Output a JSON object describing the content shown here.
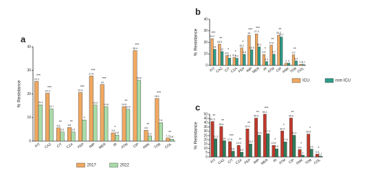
{
  "chart_data": [
    {
      "type": "bar",
      "panel": "a",
      "y_label": "% Resistance",
      "categories": [
        "P/T",
        "CAZ",
        "C/T",
        "CZA",
        "FEP",
        "IMP",
        "MER",
        "IR",
        "ATM",
        "CIP",
        "AMK",
        "TOB",
        "COL"
      ],
      "series": [
        {
          "name": "2017",
          "color": "#f0a860",
          "values": [
            25.3,
            20.3,
            5.6,
            5.8,
            20.6,
            27.6,
            24.0,
            3.5,
            14.6,
            38.4,
            4.6,
            18.1,
            1.3
          ]
        },
        {
          "name": "2022",
          "color": "#a8dca8",
          "values": [
            15.4,
            13.7,
            3.9,
            3.9,
            9.0,
            15.3,
            14.6,
            2.6,
            13.5,
            25.8,
            2.2,
            7.8,
            0.8
          ]
        }
      ],
      "stars": [
        "***",
        "***",
        "**",
        "**",
        "***",
        "***",
        "***",
        "*",
        "**",
        "***",
        "**",
        "***",
        "**"
      ],
      "ylim": [
        0,
        40
      ],
      "yticks": [
        0,
        10,
        20,
        30,
        40
      ],
      "legend": "bottom"
    },
    {
      "type": "bar",
      "panel": "b",
      "y_label": "% Resistance",
      "categories": [
        "P/T",
        "CAZ",
        "C/T",
        "CZA",
        "FEP",
        "IMP",
        "MER",
        "IR",
        "ATM",
        "CIP",
        "AMK",
        "TOB",
        "COL"
      ],
      "series": [
        {
          "name": "ICU",
          "color": "#f0a860",
          "values": [
            23.2,
            18.5,
            8.6,
            6.9,
            15.2,
            26.0,
            27.3,
            9.5,
            17.6,
            26.2,
            2.0,
            9.2,
            1.1
          ]
        },
        {
          "name": "non ICU",
          "color": "#2e9c8a",
          "values": [
            14.0,
            12.0,
            6.4,
            6.2,
            9.6,
            13.5,
            16.1,
            3.3,
            9.7,
            24.7,
            2.0,
            3.9,
            0.7
          ]
        }
      ],
      "stars": [
        "***",
        "**",
        "*",
        "*",
        "*",
        "***",
        "***",
        "*",
        "**",
        "**",
        null,
        "**",
        null
      ],
      "ylim": [
        0,
        40
      ],
      "yticks": [
        0,
        10,
        20,
        30,
        40
      ],
      "legend": "bottom-right"
    },
    {
      "type": "bar",
      "panel": "c",
      "y_label": "% Resistance",
      "categories": [
        "P/T",
        "CAZ",
        "C/T",
        "CZA",
        "FEP",
        "IMP",
        "MER",
        "IR",
        "ATM",
        "CIP",
        "AMK",
        "TOB",
        "COL"
      ],
      "series": [
        {
          "color": "#c0392b",
          "values": [
            41.5,
            35.6,
            17.9,
            13.5,
            32.9,
            45.5,
            50.1,
            13.5,
            30.4,
            45.6,
            8.6,
            26.8,
            3.3
          ]
        },
        {
          "color": "#2e7d5b",
          "values": [
            21.3,
            19.0,
            6.8,
            5.6,
            15.2,
            25.5,
            27.2,
            9.5,
            17.6,
            25.4,
            2.0,
            9.2,
            1.1
          ]
        }
      ],
      "stars": [
        "**",
        "**",
        "***",
        "**",
        "**",
        "**",
        "***",
        "*",
        "*",
        "**",
        "*",
        "*",
        "*"
      ],
      "ylim": [
        0,
        50
      ],
      "yticks": [
        0,
        5,
        10,
        15,
        20,
        25,
        30,
        35,
        40,
        45,
        50
      ],
      "legend": "none"
    }
  ]
}
